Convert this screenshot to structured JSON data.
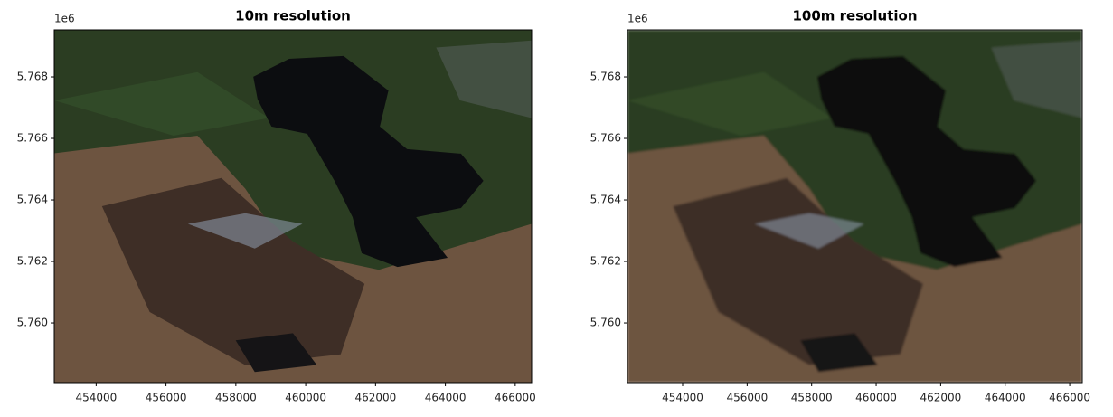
{
  "chart_data": [
    {
      "type": "image",
      "title": "10m resolution",
      "offset_label": "1e6",
      "xlim": [
        452800,
        466470
      ],
      "ylim": [
        5758060,
        5769530
      ],
      "xticks": [
        454000,
        456000,
        458000,
        460000,
        462000,
        464000,
        466000
      ],
      "yticks": [
        {
          "value": 5760000,
          "label": "5.760"
        },
        {
          "value": 5762000,
          "label": "5.762"
        },
        {
          "value": 5764000,
          "label": "5.764"
        },
        {
          "value": 5766000,
          "label": "5.766"
        },
        {
          "value": 5768000,
          "label": "5.768"
        }
      ]
    },
    {
      "type": "image",
      "title": "100m resolution",
      "offset_label": "1e6",
      "xlim": [
        452290,
        466390
      ],
      "ylim": [
        5758060,
        5769530
      ],
      "xticks": [
        454000,
        456000,
        458000,
        460000,
        462000,
        464000,
        466000
      ],
      "yticks": [
        {
          "value": 5760000,
          "label": "5.760"
        },
        {
          "value": 5762000,
          "label": "5.762"
        },
        {
          "value": 5764000,
          "label": "5.764"
        },
        {
          "value": 5766000,
          "label": "5.766"
        },
        {
          "value": 5768000,
          "label": "5.768"
        }
      ]
    }
  ]
}
